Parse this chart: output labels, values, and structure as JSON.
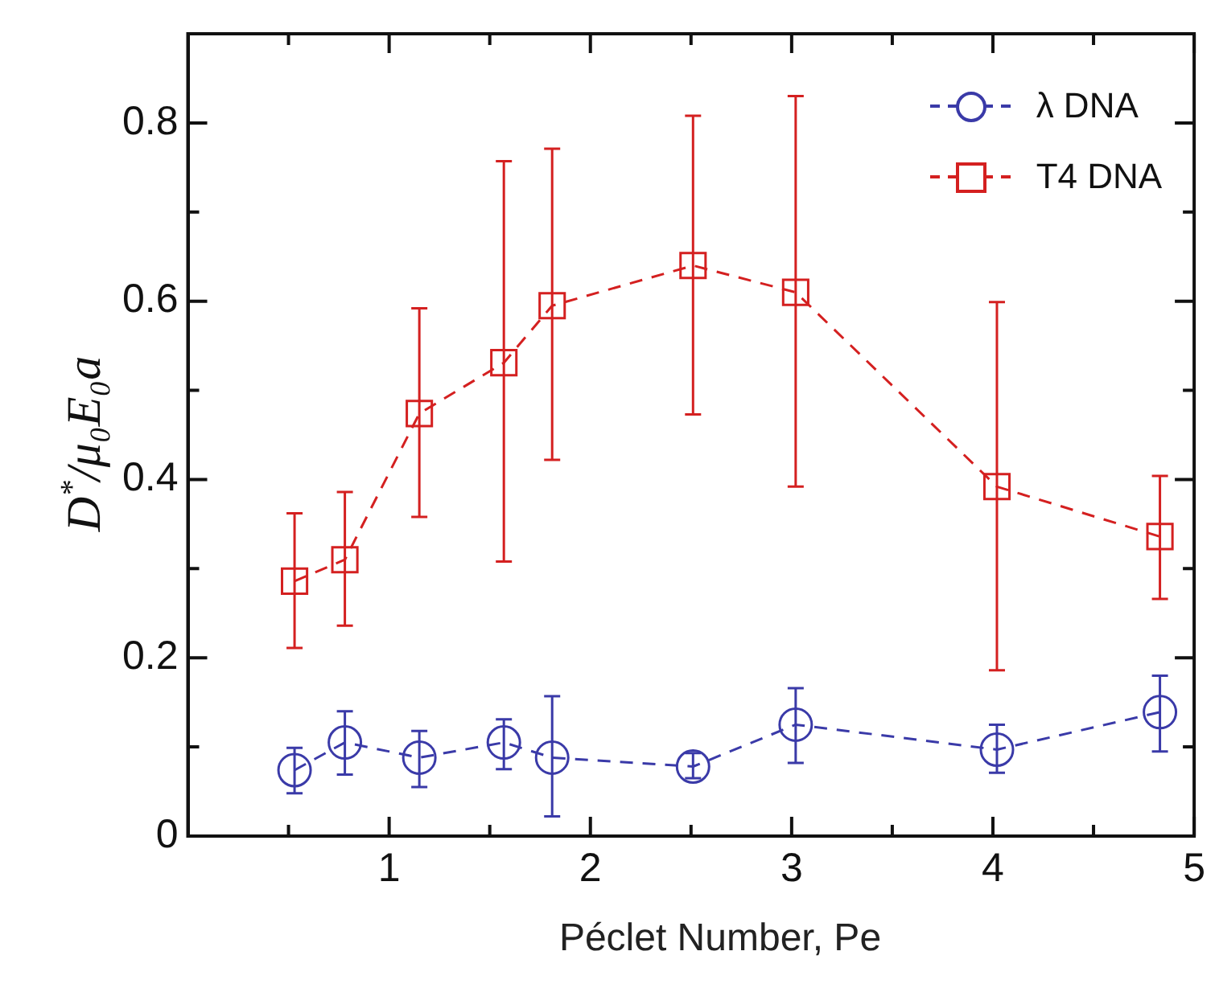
{
  "chart_data": {
    "type": "line",
    "xlabel": "Péclet Number, Pe",
    "ylabel": "D$^{*}$/μ₀E₀a",
    "xlim": [
      0,
      5
    ],
    "ylim": [
      0,
      0.9
    ],
    "xticks": [
      {
        "value": 0.5,
        "label": null
      },
      1,
      {
        "value": 1.5,
        "label": null
      },
      2,
      {
        "value": 2.5,
        "label": null
      },
      3,
      {
        "value": 3.5,
        "label": null
      },
      4,
      {
        "value": 4.5,
        "label": null
      },
      5
    ],
    "yticks": [
      0,
      {
        "value": 0.1,
        "label": null
      },
      0.2,
      {
        "value": 0.3,
        "label": null
      },
      0.4,
      {
        "value": 0.5,
        "label": null
      },
      0.6,
      {
        "value": 0.7,
        "label": null
      },
      0.8
    ],
    "grid": false,
    "legend": "top right",
    "line_style": "dashed",
    "series": [
      {
        "name": "λ DNA",
        "color": "#3a3aa8",
        "marker": "circle",
        "x": [
          0.53,
          0.78,
          1.15,
          1.57,
          1.81,
          2.51,
          3.02,
          4.02,
          4.83
        ],
        "values": [
          0.074,
          0.105,
          0.088,
          0.105,
          0.088,
          0.078,
          0.125,
          0.097,
          0.139
        ],
        "errors": [
          [
            0.048,
            0.099
          ],
          [
            0.069,
            0.14
          ],
          [
            0.055,
            0.118
          ],
          [
            0.075,
            0.131
          ],
          [
            0.022,
            0.157
          ],
          [
            0.065,
            0.093
          ],
          [
            0.082,
            0.166
          ],
          [
            0.071,
            0.125
          ],
          [
            0.095,
            0.18
          ]
        ]
      },
      {
        "name": "T4 DNA",
        "color": "#d42020",
        "marker": "square",
        "x": [
          0.53,
          0.78,
          1.15,
          1.57,
          1.81,
          2.51,
          3.02,
          4.02,
          4.83
        ],
        "values": [
          0.286,
          0.31,
          0.474,
          0.531,
          0.595,
          0.64,
          0.61,
          0.392,
          0.336
        ],
        "errors": [
          [
            0.211,
            0.362
          ],
          [
            0.236,
            0.386
          ],
          [
            0.358,
            0.592
          ],
          [
            0.308,
            0.757
          ],
          [
            0.422,
            0.771
          ],
          [
            0.473,
            0.808
          ],
          [
            0.392,
            0.83
          ],
          [
            0.186,
            0.599
          ],
          [
            0.266,
            0.404
          ]
        ]
      }
    ]
  }
}
